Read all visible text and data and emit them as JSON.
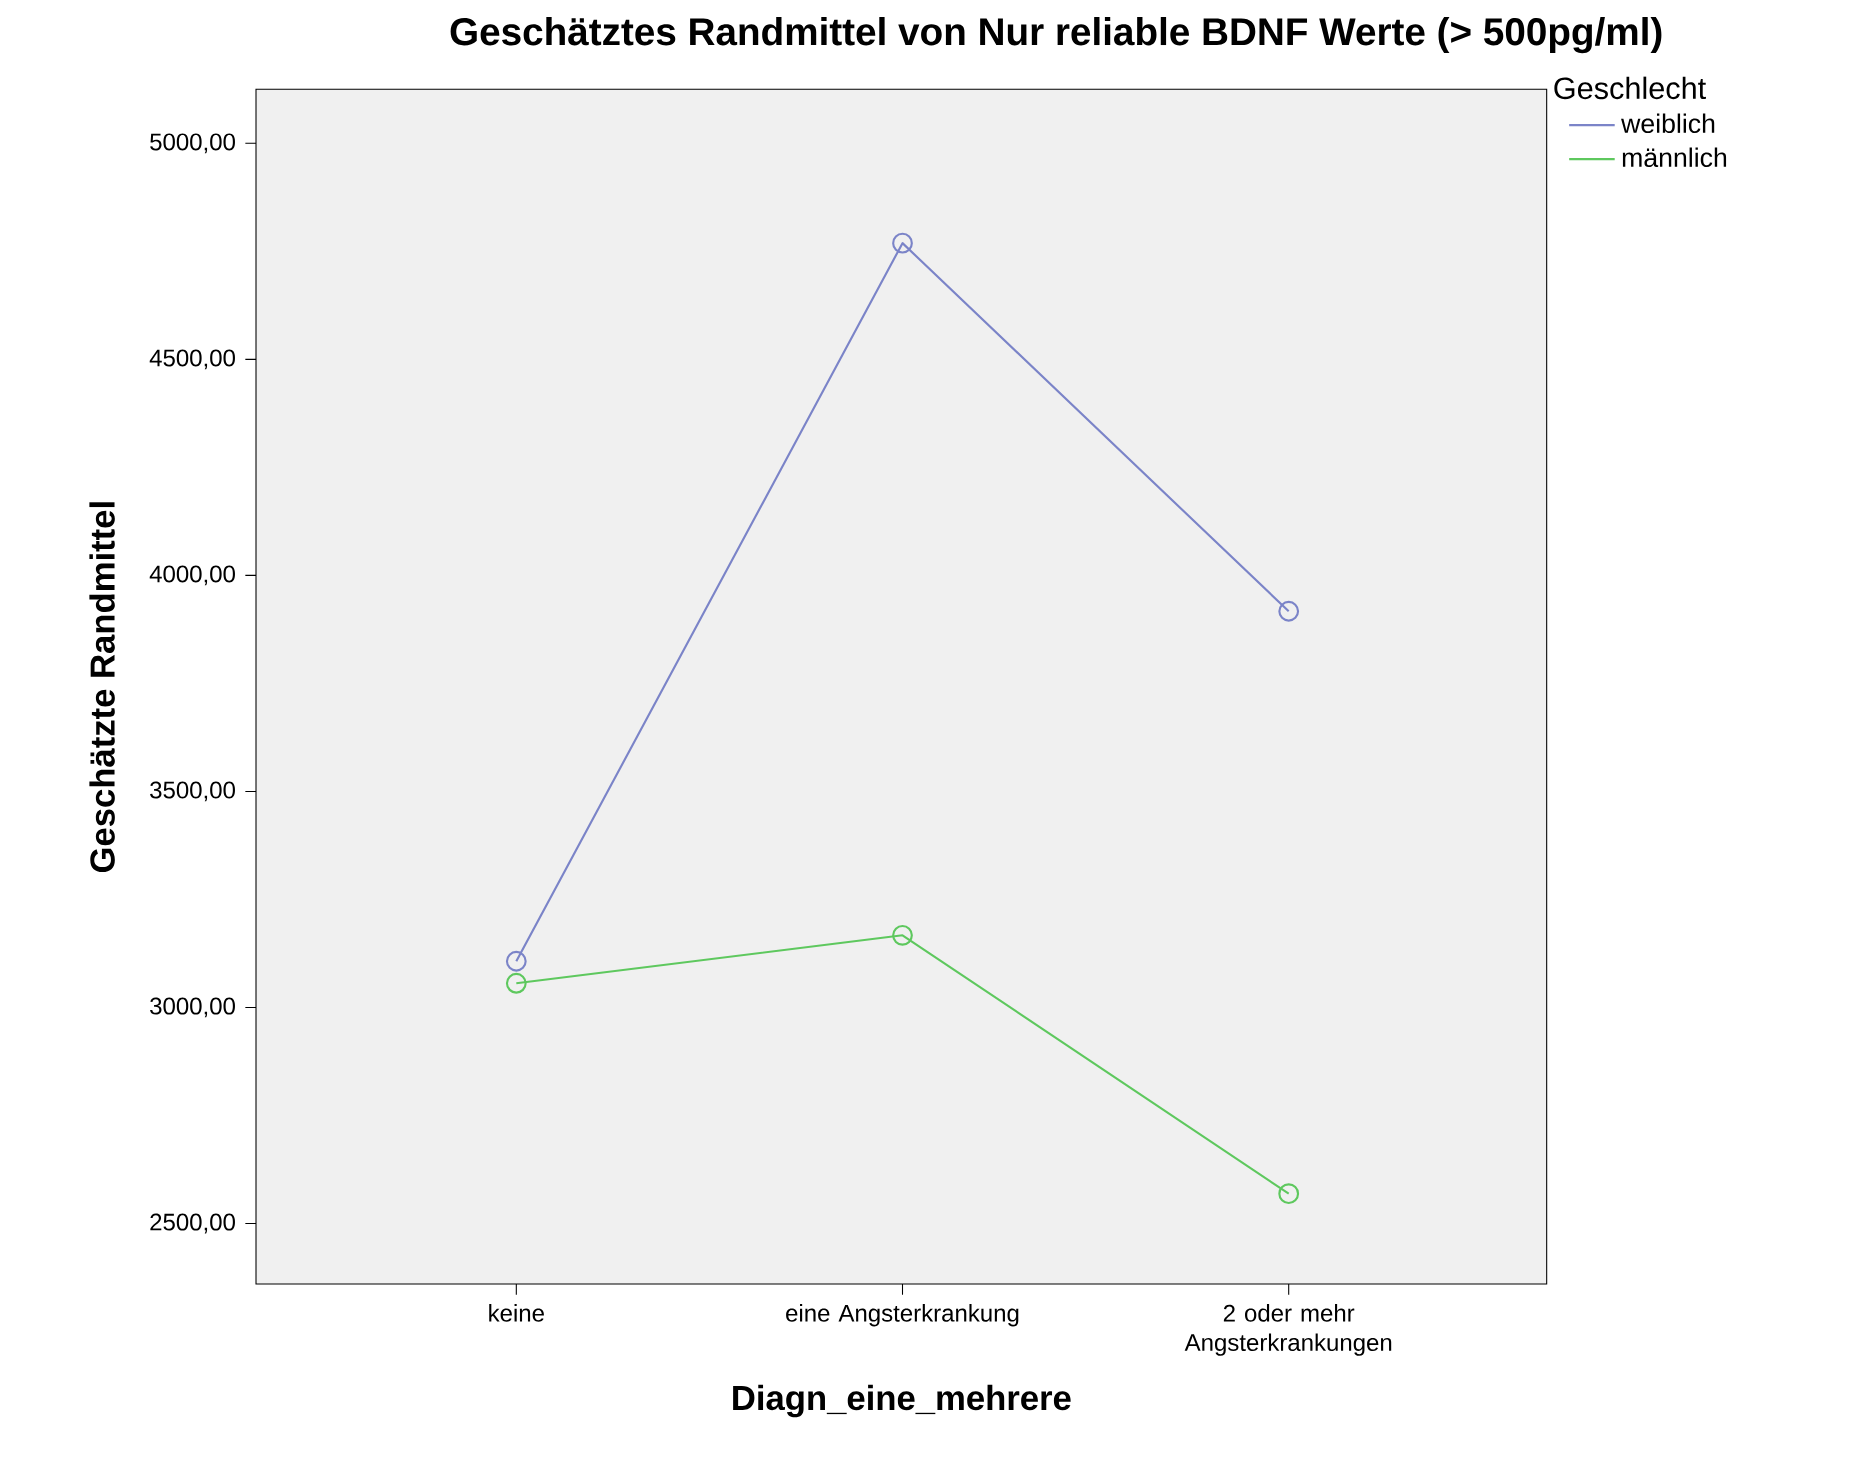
{
  "chart_data": {
    "type": "line",
    "title": "Geschätztes Randmittel von Nur reliable BDNF Werte (> 500pg/ml)",
    "xlabel": "Diagn_eine_mehrere",
    "ylabel": "Geschätzte Randmittel",
    "legend_title": "Geschlecht",
    "legend": "top right",
    "marker": "circle",
    "line_style": "solid",
    "grid": false,
    "categories": [
      "keine",
      "eine Angsterkrankung",
      "2 oder mehr Angsterkrankungen"
    ],
    "ylim": [
      2360,
      5125
    ],
    "yticks": [
      {
        "value": 2500,
        "label": "2500,00"
      },
      {
        "value": 3000,
        "label": "3000,00"
      },
      {
        "value": 3500,
        "label": "3500,00"
      },
      {
        "value": 4000,
        "label": "4000,00"
      },
      {
        "value": 4500,
        "label": "4500,00"
      },
      {
        "value": 5000,
        "label": "5000,00"
      }
    ],
    "series": [
      {
        "name": "weiblich",
        "color": "#7b84c8",
        "values": [
          3107,
          4769,
          3917
        ]
      },
      {
        "name": "männlich",
        "color": "#5ec85e",
        "values": [
          3056,
          3167,
          2569
        ]
      }
    ]
  }
}
